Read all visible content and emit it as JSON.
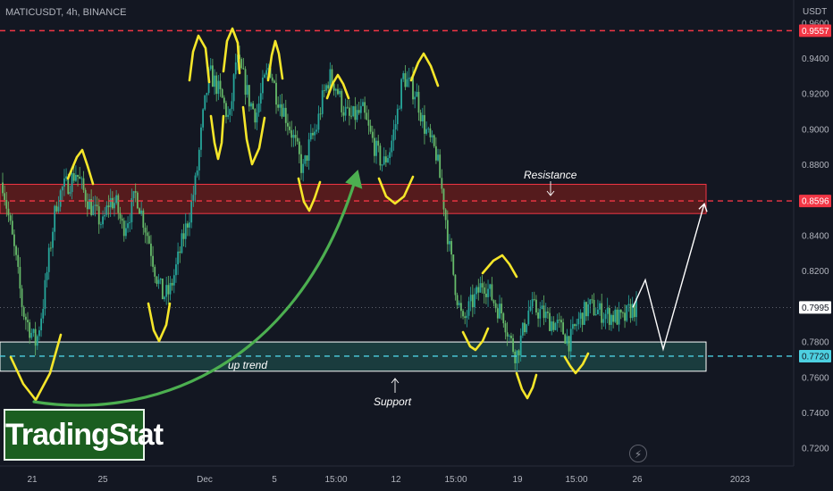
{
  "header": {
    "symbol": "MATICUSDT, 4h, BINANCE",
    "currency": "USDT"
  },
  "brand": {
    "label": "TradingStat"
  },
  "icons": {
    "bolt": "lightning-icon"
  },
  "colors": {
    "background": "#131722",
    "candle_up": "#26a69a",
    "candle_down": "#66bb6a",
    "resistance_line": "#f23645",
    "support_line": "#4dd0e1",
    "resistance_zone": "#8d1f1a",
    "support_zone": "#1e4a48",
    "annotation_yellow": "#f5e62a",
    "trend_arrow": "#4caf50",
    "projection": "#ffffff"
  },
  "chart_data": {
    "type": "candlestick",
    "yaxis": {
      "ylim": [
        0.71,
        0.97
      ],
      "ticks": [
        0.72,
        0.74,
        0.76,
        0.78,
        0.8,
        0.82,
        0.84,
        0.86,
        0.88,
        0.9,
        0.92,
        0.94,
        0.96
      ],
      "tick_labels": [
        "0.7200",
        "0.7400",
        "0.7600",
        "0.7800",
        "0.8000",
        "0.8200",
        "0.8400",
        "0.8600",
        "0.8800",
        "0.9000",
        "0.9200",
        "0.9400",
        "0.9600"
      ]
    },
    "xaxis": {
      "ticks": [
        "21",
        "25",
        "Dec",
        "5",
        "15:00",
        "12",
        "15:00",
        "19",
        "15:00",
        "26",
        "2023"
      ]
    },
    "current_price": {
      "value": 0.7995,
      "label": "0.7995"
    },
    "levels": [
      {
        "name": "resistance-top",
        "value": 0.9557,
        "label": "0.9557",
        "style": "dashed",
        "color": "#f23645"
      },
      {
        "name": "resistance",
        "value": 0.8596,
        "label": "0.8596",
        "style": "dashed",
        "color": "#f23645"
      },
      {
        "name": "support",
        "value": 0.772,
        "label": "0.7720",
        "style": "dashed",
        "color": "#4dd0e1"
      }
    ],
    "zones": [
      {
        "name": "resistance-zone",
        "from": 0.8525,
        "to": 0.869
      },
      {
        "name": "support-zone",
        "from": 0.7635,
        "to": 0.78
      }
    ],
    "annotations": [
      {
        "name": "resistance-label",
        "text": "Resistance"
      },
      {
        "name": "support-label",
        "text": "Support"
      },
      {
        "name": "uptrend-label",
        "text": "up trend"
      }
    ],
    "close_path": [
      0.87,
      0.848,
      0.826,
      0.798,
      0.788,
      0.779,
      0.8,
      0.83,
      0.858,
      0.867,
      0.87,
      0.876,
      0.866,
      0.858,
      0.852,
      0.846,
      0.86,
      0.858,
      0.844,
      0.852,
      0.864,
      0.85,
      0.836,
      0.818,
      0.806,
      0.808,
      0.822,
      0.838,
      0.852,
      0.872,
      0.906,
      0.932,
      0.925,
      0.916,
      0.904,
      0.94,
      0.93,
      0.916,
      0.908,
      0.924,
      0.936,
      0.92,
      0.912,
      0.902,
      0.89,
      0.876,
      0.892,
      0.9,
      0.918,
      0.93,
      0.924,
      0.912,
      0.906,
      0.908,
      0.91,
      0.898,
      0.888,
      0.88,
      0.888,
      0.905,
      0.93,
      0.925,
      0.92,
      0.904,
      0.894,
      0.886,
      0.862,
      0.832,
      0.808,
      0.79,
      0.8,
      0.806,
      0.814,
      0.808,
      0.8,
      0.796,
      0.782,
      0.772,
      0.786,
      0.8,
      0.798,
      0.796,
      0.792,
      0.79,
      0.786,
      0.78,
      0.79,
      0.796,
      0.8,
      0.798,
      0.796,
      0.795,
      0.794,
      0.792,
      0.798,
      0.7995
    ],
    "projection_path": [
      0.7995,
      0.815,
      0.776,
      0.858
    ]
  }
}
